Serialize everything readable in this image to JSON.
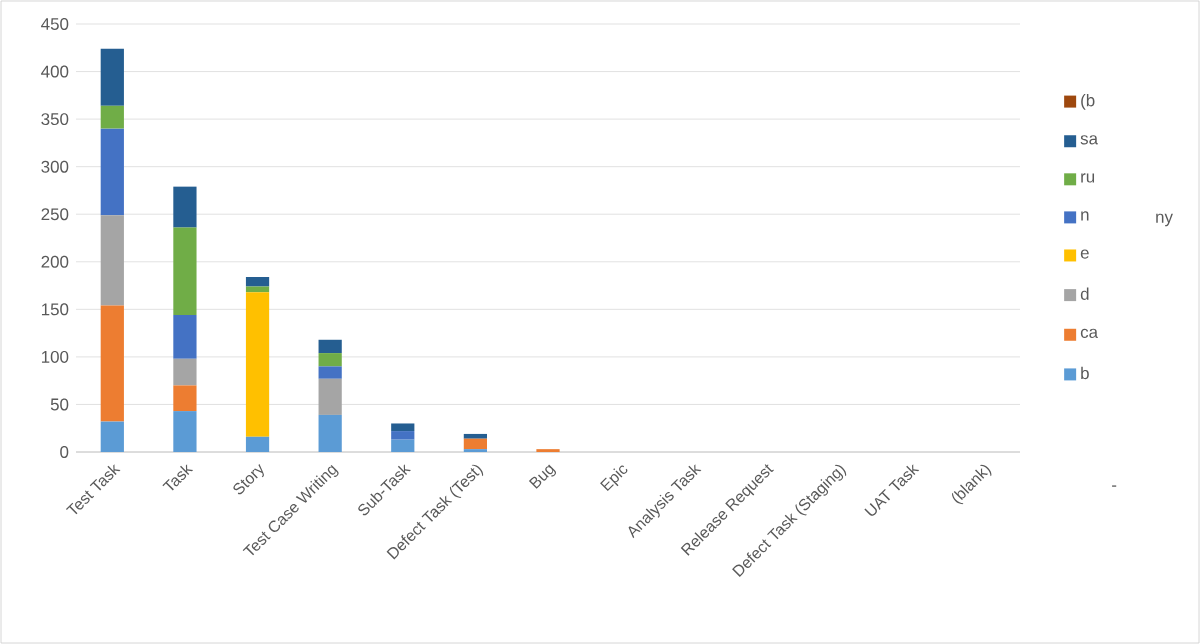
{
  "chart_data": {
    "type": "bar",
    "stacked": true,
    "categories": [
      "Test Task",
      "Task",
      "Story",
      "Test Case Writing",
      "Sub-Task",
      "Defect Task (Test)",
      "Bug",
      "Epic",
      "Analysis Task",
      "Release Request",
      "Defect Task (Staging)",
      "UAT Task",
      "(blank)"
    ],
    "series": [
      {
        "name": "b",
        "color": "#5b9bd5",
        "values": [
          32,
          43,
          16,
          39,
          13,
          3,
          null,
          null,
          null,
          null,
          null,
          null,
          null
        ]
      },
      {
        "name": "ca",
        "color": "#ed7d31",
        "values": [
          122,
          27,
          null,
          null,
          null,
          11,
          3,
          null,
          null,
          null,
          null,
          null,
          null
        ]
      },
      {
        "name": "d",
        "color": "#a5a5a5",
        "values": [
          95,
          28,
          null,
          38,
          null,
          null,
          null,
          null,
          null,
          null,
          null,
          null,
          null
        ]
      },
      {
        "name": "e",
        "color": "#ffc000",
        "values": [
          null,
          null,
          152,
          null,
          null,
          null,
          null,
          null,
          null,
          null,
          null,
          null,
          null
        ]
      },
      {
        "name": "n",
        "color": "#4472c4",
        "values": [
          91,
          46,
          null,
          13,
          9,
          null,
          null,
          null,
          null,
          null,
          null,
          null,
          null
        ]
      },
      {
        "name": "ru",
        "color": "#70ad47",
        "values": [
          24,
          92,
          6,
          14,
          null,
          null,
          null,
          null,
          null,
          null,
          null,
          null,
          null
        ]
      },
      {
        "name": "sa",
        "color": "#255e91",
        "values": [
          60,
          43,
          10,
          14,
          8,
          5,
          null,
          null,
          null,
          null,
          null,
          null,
          null
        ]
      },
      {
        "name": "(b",
        "color": "#9e480e",
        "values": [
          null,
          null,
          null,
          null,
          null,
          null,
          null,
          null,
          null,
          null,
          null,
          null,
          null
        ]
      }
    ],
    "ylim": [
      0,
      450
    ],
    "yticks": [
      0,
      50,
      100,
      150,
      200,
      250,
      300,
      350,
      400,
      450
    ],
    "grid": "y",
    "legend": "right",
    "annotations": [
      "ny",
      "-"
    ]
  }
}
